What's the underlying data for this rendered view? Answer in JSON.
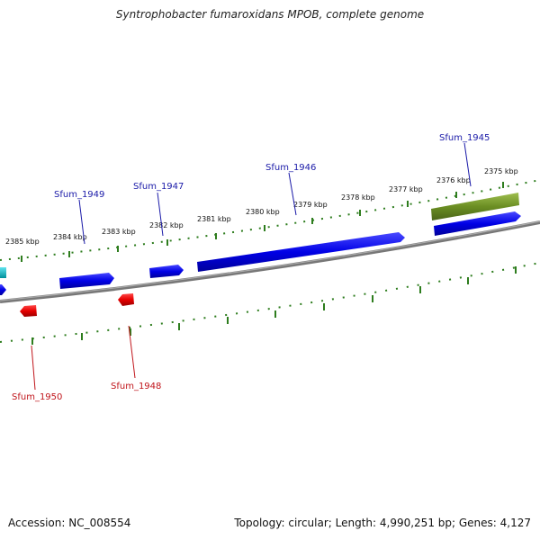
{
  "title": "Syntrophobacter fumaroxidans MPOB, complete genome",
  "footer": {
    "accession": "Accession: NC_008554",
    "topology": "Topology: circular; Length: 4,990,251 bp; Genes: 4,127"
  },
  "colors": {
    "backbone": "#7f7f7f",
    "tick": "#2e7d1e",
    "forward_gene": "#0000e6",
    "reverse_gene": "#e60000",
    "highlight_gene": "#6b8e23",
    "partial_gene": "#00b5c4",
    "forward_label": "#1a1aa8",
    "reverse_label": "#c0141a"
  },
  "kbp_labels": [
    "2385 kbp",
    "2384 kbp",
    "2383 kbp",
    "2382 kbp",
    "2381 kbp",
    "2380 kbp",
    "2379 kbp",
    "2378 kbp",
    "2377 kbp",
    "2376 kbp",
    "2375 kbp"
  ],
  "genes": {
    "sfum_1945": "Sfum_1945",
    "sfum_1946": "Sfum_1946",
    "sfum_1947": "Sfum_1947",
    "sfum_1948": "Sfum_1948",
    "sfum_1949": "Sfum_1949",
    "sfum_1950": "Sfum_1950"
  }
}
